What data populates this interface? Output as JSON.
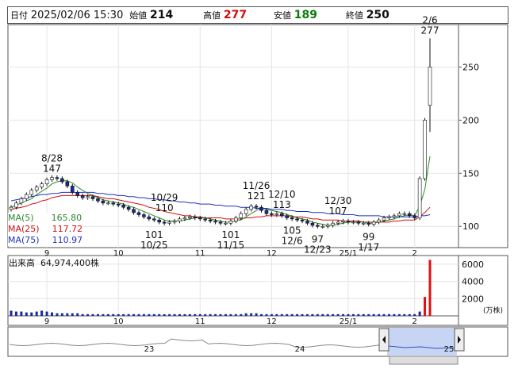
{
  "header": {
    "date_label": "日付",
    "date_value": "2025/02/06 15:30",
    "open_label": "始値",
    "open_value": "214",
    "high_label": "高値",
    "high_value": "277",
    "low_label": "安値",
    "low_value": "189",
    "close_label": "終値",
    "close_value": "250"
  },
  "ma_legend": [
    {
      "label": "MA(5)",
      "value": "165.80",
      "color": "#2a8a2a"
    },
    {
      "label": "MA(25)",
      "value": "117.72",
      "color": "#d01010"
    },
    {
      "label": "MA(75)",
      "value": "110.97",
      "color": "#2030c0"
    }
  ],
  "volume": {
    "label": "出来高",
    "value": "64,974,400株",
    "unit": "(万株)"
  },
  "colors": {
    "up": "#ffffff",
    "down": "#1a2a9a",
    "volume": "#1a2a9a",
    "volume_recent": "#e01010"
  },
  "chart_data": {
    "type": "candlestick",
    "price_axis": {
      "ticks": [
        "100",
        "150",
        "200",
        "250"
      ],
      "ylim": [
        80,
        290
      ]
    },
    "volume_axis": {
      "ticks": [
        "2000",
        "4000",
        "6000"
      ],
      "ylim": [
        0,
        7000
      ]
    },
    "x_month_labels": [
      "9",
      "10",
      "11",
      "12",
      "25/1",
      "2"
    ],
    "navigator_labels": [
      "23",
      "24",
      "25"
    ],
    "annotations": [
      {
        "date": "8/28",
        "value": "147",
        "kind": "high"
      },
      {
        "date": "10/29",
        "value": "110",
        "kind": "high"
      },
      {
        "date": "10/25",
        "value": "101",
        "kind": "low"
      },
      {
        "date": "11/26",
        "value": "121",
        "kind": "high"
      },
      {
        "date": "11/15",
        "value": "101",
        "kind": "low"
      },
      {
        "date": "12/10",
        "value": "113",
        "kind": "high"
      },
      {
        "date": "12/6",
        "value": "105",
        "kind": "low"
      },
      {
        "date": "12/30",
        "value": "107",
        "kind": "high"
      },
      {
        "date": "12/23",
        "value": "97",
        "kind": "low"
      },
      {
        "date": "1/17",
        "value": "99",
        "kind": "low"
      },
      {
        "date": "2/6",
        "value": "277",
        "kind": "high"
      }
    ],
    "close_series": [
      118,
      122,
      126,
      130,
      134,
      137,
      140,
      144,
      146,
      145,
      142,
      138,
      132,
      129,
      127,
      128,
      126,
      124,
      122,
      122,
      121,
      120,
      118,
      116,
      113,
      111,
      109,
      107,
      106,
      104,
      103,
      104,
      105,
      107,
      108,
      109,
      108,
      107,
      106,
      105,
      104,
      103,
      103,
      105,
      108,
      112,
      116,
      119,
      118,
      115,
      112,
      111,
      112,
      110,
      108,
      107,
      106,
      105,
      103,
      101,
      100,
      100,
      101,
      103,
      104,
      105,
      104,
      104,
      103,
      103,
      102,
      104,
      106,
      108,
      109,
      110,
      112,
      112,
      110,
      108,
      145,
      200,
      250
    ],
    "ma5": [
      118,
      120,
      122,
      124,
      126,
      130,
      133,
      136,
      140,
      142,
      143,
      143,
      141,
      137,
      134,
      131,
      129,
      127,
      125,
      124,
      123,
      122,
      121,
      119,
      118,
      116,
      114,
      112,
      110,
      108,
      106,
      105,
      105,
      105,
      106,
      107,
      108,
      108,
      108,
      107,
      106,
      105,
      104,
      104,
      105,
      106,
      109,
      112,
      115,
      117,
      116,
      115,
      114,
      113,
      111,
      110,
      108,
      107,
      106,
      104,
      103,
      102,
      101,
      101,
      102,
      103,
      104,
      104,
      104,
      104,
      103,
      103,
      104,
      105,
      106,
      107,
      109,
      110,
      111,
      110,
      119,
      135,
      166
    ],
    "ma25": [
      116,
      117,
      118,
      119,
      121,
      122,
      124,
      125,
      127,
      128,
      129,
      129,
      129,
      129,
      129,
      129,
      129,
      128,
      127,
      126,
      126,
      125,
      124,
      123,
      122,
      121,
      120,
      118,
      117,
      116,
      114,
      113,
      112,
      111,
      110,
      110,
      109,
      109,
      108,
      108,
      108,
      108,
      107,
      107,
      107,
      107,
      108,
      108,
      109,
      109,
      110,
      110,
      110,
      110,
      110,
      109,
      109,
      109,
      108,
      107,
      107,
      106,
      106,
      106,
      106,
      105,
      105,
      105,
      105,
      104,
      104,
      104,
      104,
      104,
      104,
      105,
      105,
      106,
      106,
      106,
      109,
      113,
      118
    ],
    "ma75": [
      124,
      125,
      126,
      127,
      128,
      129,
      130,
      130,
      131,
      131,
      132,
      132,
      132,
      132,
      132,
      132,
      132,
      131,
      131,
      130,
      130,
      129,
      129,
      128,
      128,
      127,
      127,
      126,
      126,
      125,
      125,
      124,
      124,
      123,
      123,
      122,
      122,
      121,
      121,
      121,
      120,
      120,
      119,
      119,
      119,
      118,
      118,
      118,
      117,
      117,
      117,
      116,
      116,
      116,
      115,
      115,
      114,
      114,
      114,
      113,
      113,
      113,
      112,
      112,
      112,
      111,
      111,
      111,
      110,
      110,
      110,
      110,
      110,
      109,
      109,
      109,
      109,
      109,
      109,
      109,
      110,
      110,
      111
    ],
    "volume_series": [
      600,
      500,
      500,
      400,
      400,
      500,
      600,
      500,
      400,
      300,
      300,
      300,
      300,
      300,
      200,
      200,
      200,
      200,
      200,
      200,
      200,
      200,
      200,
      200,
      200,
      200,
      200,
      200,
      200,
      200,
      200,
      200,
      200,
      200,
      200,
      200,
      200,
      200,
      200,
      200,
      200,
      200,
      200,
      200,
      200,
      200,
      300,
      300,
      300,
      200,
      200,
      200,
      200,
      200,
      200,
      200,
      200,
      200,
      200,
      200,
      200,
      200,
      200,
      200,
      200,
      200,
      200,
      200,
      200,
      200,
      200,
      200,
      200,
      200,
      200,
      200,
      200,
      200,
      200,
      200,
      500,
      2200,
      6500
    ]
  }
}
